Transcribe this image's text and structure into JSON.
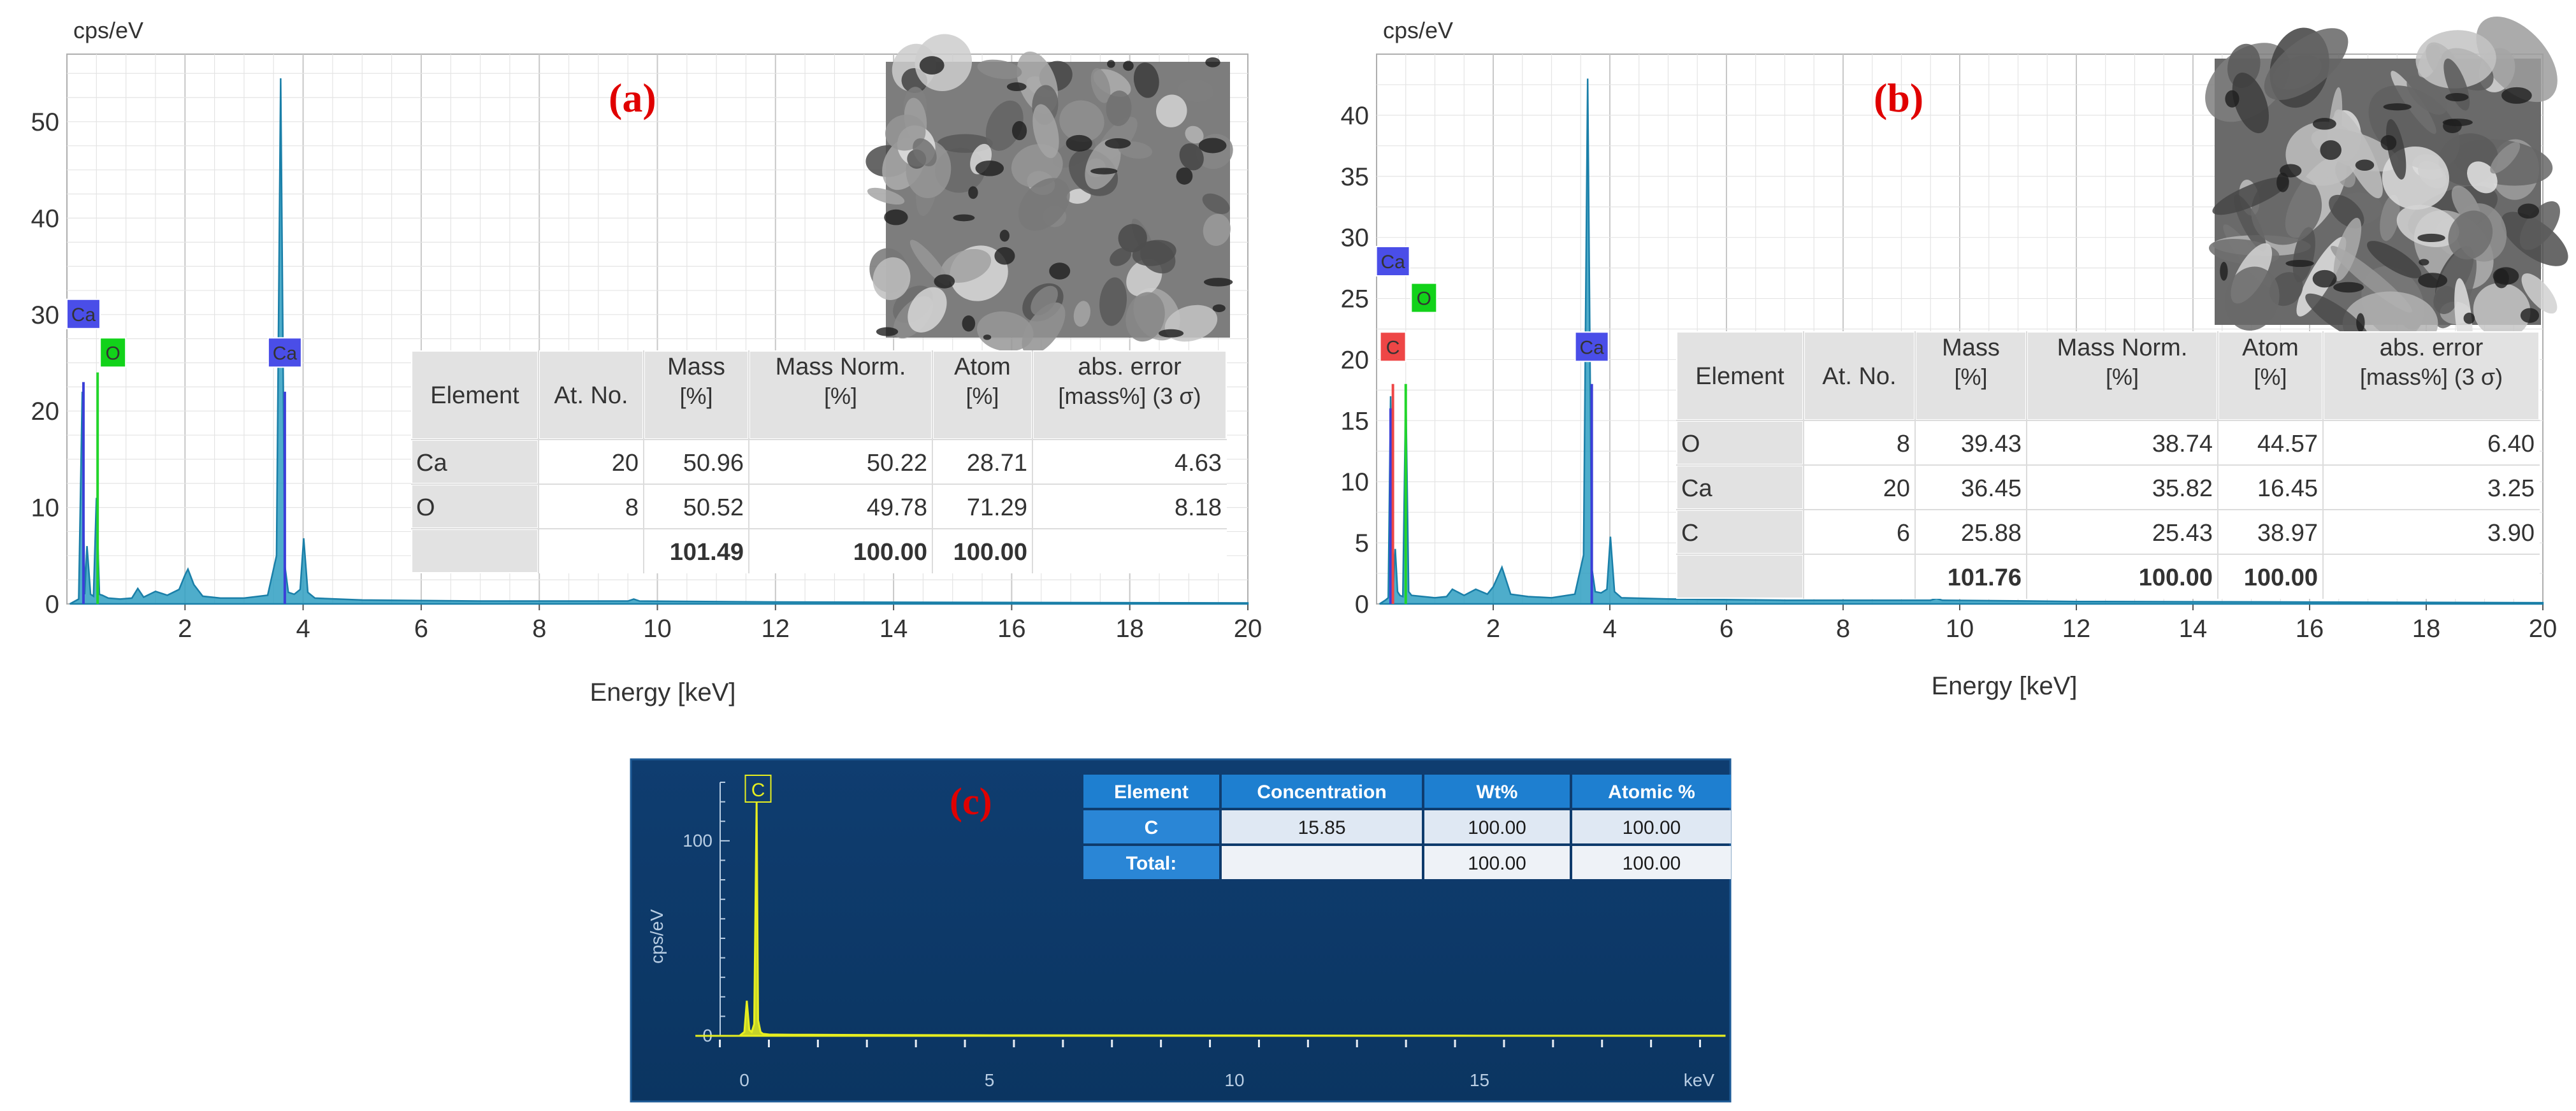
{
  "panels": [
    {
      "id": "a",
      "letter": "(a)",
      "chart_data": {
        "type": "line",
        "title": "(a)",
        "ylabel": "cps/eV",
        "xlabel": "Energy [keV]",
        "xlim": [
          0,
          20
        ],
        "ylim": [
          0,
          57
        ],
        "xticks": [
          2,
          4,
          6,
          8,
          10,
          12,
          14,
          16,
          18,
          20
        ],
        "yticks": [
          0,
          10,
          20,
          30,
          40,
          50
        ],
        "series": [
          {
            "name": "EDS spectrum",
            "x": [
              0.05,
              0.2,
              0.26,
              0.3,
              0.34,
              0.4,
              0.45,
              0.5,
              0.55,
              0.6,
              0.7,
              0.9,
              1.1,
              1.2,
              1.3,
              1.5,
              1.7,
              1.9,
              2.0,
              2.05,
              2.15,
              2.3,
              2.6,
              3.0,
              3.4,
              3.55,
              3.62,
              3.69,
              3.75,
              3.85,
              3.95,
              4.01,
              4.08,
              4.2,
              5,
              7,
              9.5,
              9.6,
              9.7,
              12,
              16,
              20
            ],
            "y": [
              0,
              0.5,
              22,
              1,
              6,
              1,
              0.8,
              11,
              1,
              0.9,
              0.6,
              0.5,
              0.6,
              1.6,
              0.7,
              1.3,
              0.9,
              1.5,
              3,
              3.6,
              2,
              0.8,
              0.6,
              0.6,
              0.9,
              5,
              54.5,
              4,
              1.2,
              1,
              1.5,
              6.8,
              1.2,
              0.6,
              0.4,
              0.3,
              0.3,
              0.5,
              0.3,
              0.2,
              0.15,
              0.1
            ]
          }
        ],
        "peak_labels": [
          {
            "text": "Ca",
            "energy": 0.28,
            "value": 30
          },
          {
            "text": "O",
            "energy": 0.52,
            "value": 26
          },
          {
            "text": "Ca",
            "energy": 3.69,
            "value": 26
          }
        ]
      },
      "table": {
        "headers": [
          [
            "Element",
            ""
          ],
          [
            "At. No.",
            ""
          ],
          [
            "Mass",
            "[%]"
          ],
          [
            "Mass Norm.",
            "[%]"
          ],
          [
            "Atom",
            "[%]"
          ],
          [
            "abs. error",
            "[mass%] (3 σ)"
          ]
        ],
        "rows": [
          [
            "Ca",
            "20",
            "50.96",
            "50.22",
            "28.71",
            "4.63"
          ],
          [
            "O",
            "8",
            "50.52",
            "49.78",
            "71.29",
            "8.18"
          ]
        ],
        "total": [
          "",
          "",
          "101.49",
          "100.00",
          "100.00",
          ""
        ]
      },
      "inset": "SEM micrograph"
    },
    {
      "id": "b",
      "letter": "(b)",
      "chart_data": {
        "type": "line",
        "title": "(b)",
        "ylabel": "cps/eV",
        "xlabel": "Energy [keV]",
        "xlim": [
          0,
          20
        ],
        "ylim": [
          0,
          45
        ],
        "xticks": [
          2,
          4,
          6,
          8,
          10,
          12,
          14,
          16,
          18,
          20
        ],
        "yticks": [
          0,
          5,
          10,
          15,
          20,
          25,
          30,
          35,
          40
        ],
        "series": [
          {
            "name": "EDS spectrum",
            "x": [
              0.05,
              0.15,
              0.2,
              0.24,
              0.28,
              0.32,
              0.36,
              0.4,
              0.45,
              0.5,
              0.55,
              0.6,
              0.8,
              1.0,
              1.2,
              1.3,
              1.5,
              1.7,
              1.9,
              2.0,
              2.15,
              2.3,
              2.6,
              3.0,
              3.4,
              3.55,
              3.62,
              3.69,
              3.75,
              3.85,
              3.95,
              4.01,
              4.08,
              4.2,
              5,
              7,
              9.5,
              9.6,
              9.7,
              12,
              16,
              20
            ],
            "y": [
              0,
              0.3,
              0.5,
              17,
              1,
              4.5,
              1,
              0.7,
              0.6,
              17.5,
              1,
              0.7,
              0.6,
              0.5,
              0.6,
              1.2,
              0.7,
              1.2,
              0.8,
              1.4,
              3,
              0.8,
              0.6,
              0.5,
              0.8,
              4,
              43,
              3,
              1,
              0.9,
              1.2,
              5.5,
              1,
              0.5,
              0.4,
              0.3,
              0.3,
              0.45,
              0.3,
              0.2,
              0.15,
              0.1
            ]
          }
        ],
        "peak_labels": [
          {
            "text": "Ca",
            "energy": 0.28,
            "value": 28
          },
          {
            "text": "O",
            "energy": 0.55,
            "value": 25
          },
          {
            "text": "C",
            "energy": 0.28,
            "value": 21
          },
          {
            "text": "Ca",
            "energy": 3.69,
            "value": 21
          }
        ]
      },
      "table": {
        "headers": [
          [
            "Element",
            ""
          ],
          [
            "At. No.",
            ""
          ],
          [
            "Mass",
            "[%]"
          ],
          [
            "Mass Norm.",
            "[%]"
          ],
          [
            "Atom",
            "[%]"
          ],
          [
            "abs. error",
            "[mass%] (3 σ)"
          ]
        ],
        "rows": [
          [
            "O",
            "8",
            "39.43",
            "38.74",
            "44.57",
            "6.40"
          ],
          [
            "Ca",
            "20",
            "36.45",
            "35.82",
            "16.45",
            "3.25"
          ],
          [
            "C",
            "6",
            "25.88",
            "25.43",
            "38.97",
            "3.90"
          ]
        ],
        "total": [
          "",
          "",
          "101.76",
          "100.00",
          "100.00",
          ""
        ]
      },
      "inset": "SEM micrograph"
    },
    {
      "id": "c",
      "letter": "(c)",
      "chart_data": {
        "type": "line",
        "title": "(c)",
        "ylabel": "cps/eV",
        "xlabel": "keV",
        "xlim": [
          -1,
          20
        ],
        "ylim": [
          0,
          130
        ],
        "xticks": [
          0,
          5,
          10,
          15
        ],
        "yticks": [
          0,
          100
        ],
        "series": [
          {
            "name": "EDS spectrum",
            "x": [
              -1,
              -0.1,
              0.0,
              0.05,
              0.1,
              0.15,
              0.2,
              0.25,
              0.28,
              0.33,
              0.38,
              0.5,
              1,
              2,
              3,
              5,
              10,
              15,
              20
            ],
            "y": [
              0,
              0,
              2,
              18,
              3,
              2,
              6,
              120,
              8,
              2,
              1,
              0.7,
              0.6,
              0.5,
              0.4,
              0.3,
              0.2,
              0.1,
              0.1
            ]
          }
        ],
        "peak_labels": [
          {
            "text": "C",
            "energy": 0.28,
            "value": 125
          }
        ]
      },
      "table": {
        "headers": [
          "Element",
          "Concentration",
          "Wt%",
          "Atomic %"
        ],
        "rows": [
          [
            "C",
            "15.85",
            "100.00",
            "100.00"
          ],
          [
            "Total:",
            "",
            "100.00",
            "100.00"
          ]
        ]
      }
    }
  ],
  "colors": {
    "spectrum_fill": "#2f9fc2",
    "spectrum_line": "#1a7fa8",
    "ca_label_bg": "#4a4ee8",
    "o_label_bg": "#12d21a",
    "c_label_bg": "#ee4646",
    "letter": "#e00000",
    "panel_c_bg": "#0e3a6c",
    "panel_c_peak": "#e7ee1f",
    "panel_c_table_header": "#1e7fd0"
  }
}
